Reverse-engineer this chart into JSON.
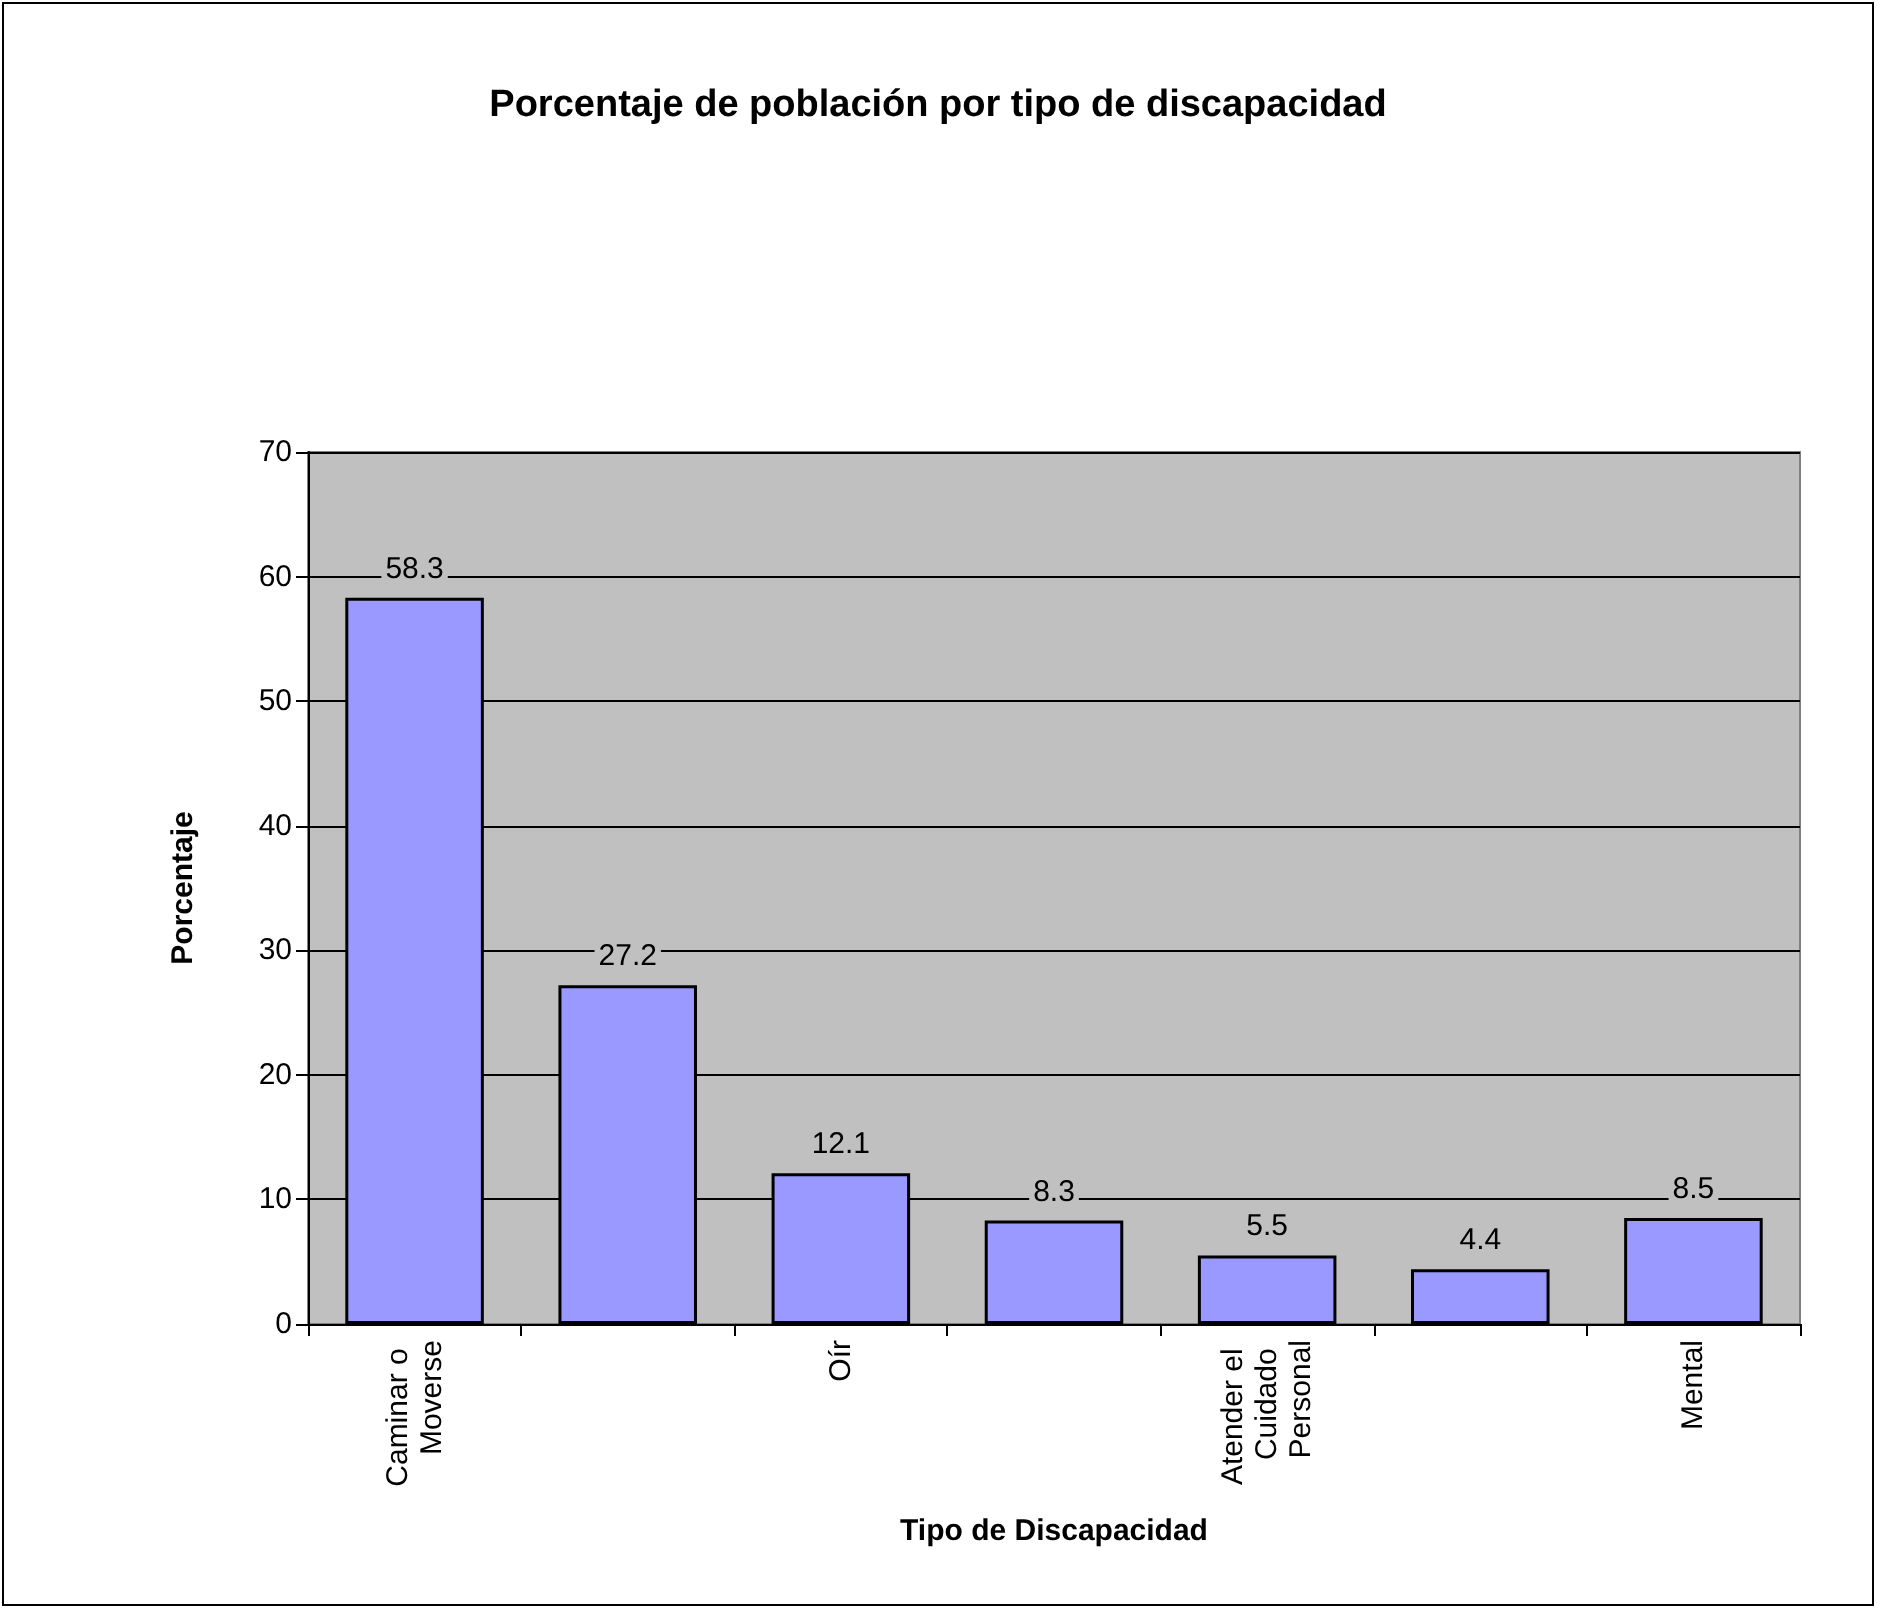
{
  "chart_data": {
    "type": "bar",
    "title": "Porcentaje de población por tipo de discapacidad",
    "xlabel": "Tipo de Discapacidad",
    "ylabel": "Porcentaje",
    "categories": [
      "Caminar o Moverse",
      null,
      "Oír",
      null,
      "Atender el Cuidado Personal",
      null,
      "Mental"
    ],
    "values": [
      58.3,
      27.2,
      12.1,
      8.3,
      5.5,
      4.4,
      8.5
    ],
    "color": "#9999ff",
    "ylim": [
      0,
      70
    ],
    "yticks": [
      0,
      10,
      20,
      30,
      40,
      50,
      60,
      70
    ],
    "grid": "y",
    "data_labels": true
  }
}
